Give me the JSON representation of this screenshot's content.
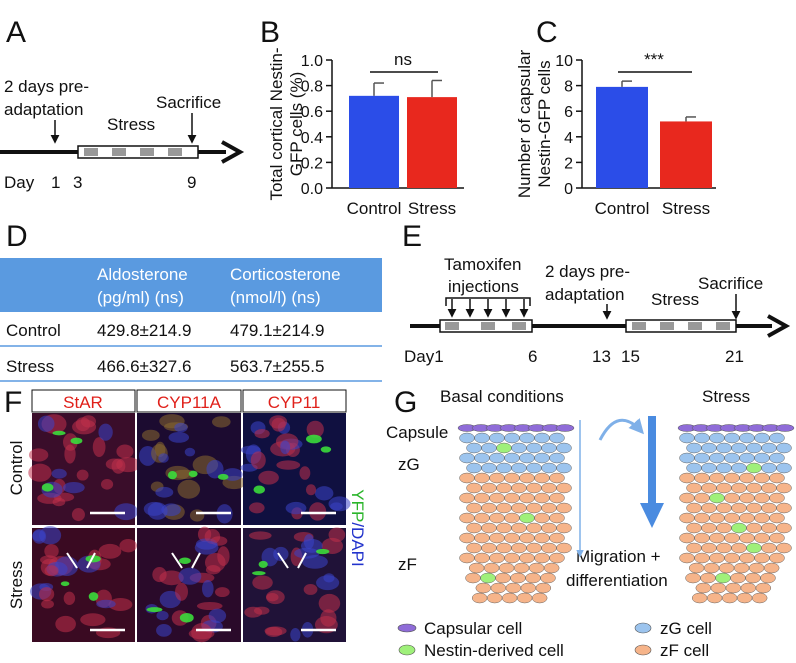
{
  "panel_letters": [
    "A",
    "B",
    "C",
    "D",
    "E",
    "F",
    "G"
  ],
  "chart_data": [
    {
      "type": "bar",
      "ylabel": [
        "Total cortical Nestin-",
        "GFP cells (%)"
      ],
      "categories": [
        "Control",
        "Stress"
      ],
      "values": [
        0.72,
        0.71
      ],
      "errors": [
        0.1,
        0.13
      ],
      "colors": [
        "#2b4de8",
        "#e8281e"
      ],
      "ylim": [
        0,
        1
      ],
      "yticks": [
        {
          "value": 0,
          "label": "0.0"
        },
        0.2,
        0.4,
        0.6,
        0.8,
        {
          "value": 1,
          "label": "1.0"
        }
      ],
      "annotation": "ns",
      "grid": false
    },
    {
      "type": "bar",
      "ylabel": [
        "Number of capsular",
        "Nestin-GFP cells"
      ],
      "categories": [
        "Control",
        "Stress"
      ],
      "values": [
        7.9,
        5.2
      ],
      "errors": [
        0.45,
        0.35
      ],
      "colors": [
        "#2b4de8",
        "#e8281e"
      ],
      "ylim": [
        0,
        10
      ],
      "yticks": [
        0,
        2,
        4,
        6,
        8,
        10
      ],
      "annotation": "***",
      "grid": false
    }
  ],
  "timeline_a": {
    "preadaptation": [
      "2 days pre-",
      "adaptation"
    ],
    "stress": "Stress",
    "sacrifice": "Sacrifice",
    "day_label": "Day",
    "days": [
      "1",
      "3",
      "9"
    ]
  },
  "table": {
    "header": [
      [
        "Aldosterone",
        "(pg/ml) (ns)"
      ],
      [
        "Corticosterone",
        "(nmol/l) (ns)"
      ]
    ],
    "rows": [
      [
        "Control",
        "429.8±214.9",
        "479.1±214.9"
      ],
      [
        "Stress",
        "466.6±327.6",
        "563.7±255.5"
      ]
    ]
  },
  "timeline_e": {
    "injections": [
      "Tamoxifen",
      "injections"
    ],
    "preadaptation": [
      "2 days pre-",
      "adaptation"
    ],
    "stress": "Stress",
    "sacrifice": "Sacrifice",
    "days": [
      "Day1",
      "6",
      "13",
      "15",
      "21"
    ]
  },
  "micrographs": {
    "columns": [
      "StAR",
      "CYP11A",
      "CYP11"
    ],
    "rows": [
      "Control",
      "Stress"
    ],
    "stain": [
      "YFP",
      "/DAPI"
    ]
  },
  "model": {
    "conditions": [
      "Basal conditions",
      "Stress"
    ],
    "zones": [
      "Capsule",
      "zG",
      "zF"
    ],
    "process": [
      "Migration +",
      "differentiation"
    ],
    "legend": [
      "Capsular cell",
      "Nestin-derived cell",
      "zG cell",
      "zF cell"
    ]
  }
}
